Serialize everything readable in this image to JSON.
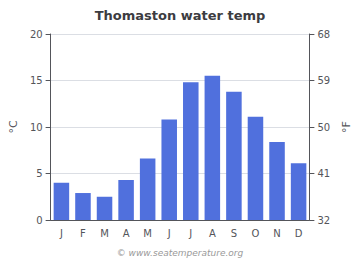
{
  "chart_data": {
    "type": "bar",
    "title": "Thomaston water temp",
    "categories": [
      "J",
      "F",
      "M",
      "A",
      "M",
      "J",
      "J",
      "A",
      "S",
      "O",
      "N",
      "D"
    ],
    "values": [
      4.0,
      2.9,
      2.5,
      4.3,
      6.6,
      10.8,
      14.8,
      15.5,
      13.8,
      11.1,
      8.4,
      6.1
    ],
    "ylabel": "°C",
    "y2label": "°F",
    "ylim": [
      0,
      20
    ],
    "yticks": [
      0,
      5,
      10,
      15,
      20
    ],
    "y2lim": [
      32,
      68
    ],
    "y2ticks": [
      32,
      41,
      50,
      59,
      68
    ],
    "grid": true,
    "annotations": [
      "© www.seatemperature.org"
    ]
  }
}
